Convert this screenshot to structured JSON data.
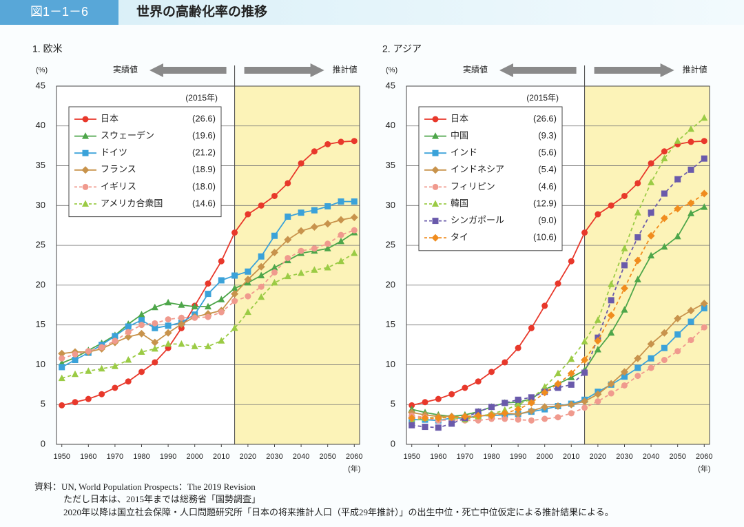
{
  "header": {
    "label": "図1－1－6",
    "title": "世界の高齢化率の推移"
  },
  "notes": [
    "資料：UN, World Population Prospects：The 2019 Revision",
    "ただし日本は、2015年までは総務省「国勢調査」",
    "2020年以降は国立社会保障・人口問題研究所「日本の将来推計人口（平成29年推計）」の出生中位・死亡中位仮定による推計結果による。"
  ],
  "chart_data": [
    {
      "type": "line",
      "title": "1. 欧米",
      "y_label": "(%)",
      "x_label": "(年)",
      "actual_label": "実績値",
      "forecast_label": "推計値",
      "legend_title": "(2015年)",
      "forecast_start": 2015,
      "grid": true,
      "x": [
        1950,
        1955,
        1960,
        1965,
        1970,
        1975,
        1980,
        1985,
        1990,
        1995,
        2000,
        2005,
        2010,
        2015,
        2020,
        2025,
        2030,
        2035,
        2040,
        2045,
        2050,
        2055,
        2060
      ],
      "xlim": [
        1948,
        2062
      ],
      "xticks": [
        1950,
        1960,
        1970,
        1980,
        1990,
        2000,
        2010,
        2020,
        2030,
        2040,
        2050,
        2060
      ],
      "ylim": [
        0,
        45
      ],
      "yticks": [
        0,
        5,
        10,
        15,
        20,
        25,
        30,
        35,
        40,
        45
      ],
      "series": [
        {
          "name": "日本",
          "legend_label": "(26.6)",
          "color": "#e8382b",
          "marker": "circle",
          "dashed": false,
          "values": [
            4.9,
            5.3,
            5.7,
            6.3,
            7.1,
            7.9,
            9.1,
            10.3,
            12.1,
            14.6,
            17.4,
            20.2,
            23.0,
            26.6,
            28.9,
            30.0,
            31.2,
            32.8,
            35.3,
            36.8,
            37.7,
            38.0,
            38.1
          ]
        },
        {
          "name": "スウェーデン",
          "legend_label": "(19.6)",
          "color": "#4ea64a",
          "marker": "triangle",
          "dashed": false,
          "values": [
            10.2,
            10.9,
            11.8,
            12.7,
            13.7,
            15.1,
            16.3,
            17.2,
            17.8,
            17.5,
            17.3,
            17.3,
            18.2,
            19.6,
            20.3,
            21.2,
            22.2,
            23.1,
            24.0,
            24.3,
            24.6,
            25.5,
            26.6
          ]
        },
        {
          "name": "ドイツ",
          "legend_label": "(21.2)",
          "color": "#3ba2d9",
          "marker": "square",
          "dashed": false,
          "values": [
            9.7,
            10.6,
            11.5,
            12.5,
            13.6,
            14.8,
            15.6,
            14.6,
            14.9,
            15.3,
            16.3,
            18.9,
            20.6,
            21.2,
            21.7,
            23.6,
            26.2,
            28.6,
            29.1,
            29.4,
            29.9,
            30.5,
            30.5
          ]
        },
        {
          "name": "フランス",
          "legend_label": "(18.9)",
          "color": "#c8934c",
          "marker": "diamond",
          "dashed": false,
          "values": [
            11.4,
            11.6,
            11.6,
            12.0,
            12.8,
            13.5,
            13.9,
            12.8,
            14.0,
            15.1,
            16.0,
            16.4,
            16.8,
            18.9,
            20.7,
            22.3,
            24.1,
            25.7,
            26.8,
            27.3,
            27.7,
            28.2,
            28.5
          ]
        },
        {
          "name": "イギリス",
          "legend_label": "(18.0)",
          "color": "#f09a8e",
          "marker": "circle",
          "dashed": true,
          "values": [
            10.8,
            11.3,
            11.7,
            12.2,
            13.0,
            14.1,
            15.0,
            15.2,
            15.7,
            15.9,
            15.9,
            16.0,
            16.6,
            18.0,
            18.6,
            19.8,
            21.6,
            23.4,
            24.3,
            24.6,
            25.2,
            26.3,
            26.9
          ]
        },
        {
          "name": "アメリカ合衆国",
          "legend_label": "(14.6)",
          "color": "#9bcb45",
          "marker": "triangle",
          "dashed": true,
          "values": [
            8.3,
            8.8,
            9.2,
            9.5,
            9.8,
            10.6,
            11.6,
            12.0,
            12.6,
            12.6,
            12.3,
            12.3,
            13.0,
            14.6,
            16.6,
            18.5,
            20.3,
            21.1,
            21.5,
            21.9,
            22.2,
            23.0,
            24.0
          ]
        }
      ]
    },
    {
      "type": "line",
      "title": "2. アジア",
      "y_label": "(%)",
      "x_label": "(年)",
      "actual_label": "実績値",
      "forecast_label": "推計値",
      "legend_title": "(2015年)",
      "forecast_start": 2015,
      "grid": true,
      "x": [
        1950,
        1955,
        1960,
        1965,
        1970,
        1975,
        1980,
        1985,
        1990,
        1995,
        2000,
        2005,
        2010,
        2015,
        2020,
        2025,
        2030,
        2035,
        2040,
        2045,
        2050,
        2055,
        2060
      ],
      "xlim": [
        1948,
        2062
      ],
      "xticks": [
        1950,
        1960,
        1970,
        1980,
        1990,
        2000,
        2010,
        2020,
        2030,
        2040,
        2050,
        2060
      ],
      "ylim": [
        0,
        45
      ],
      "yticks": [
        0,
        5,
        10,
        15,
        20,
        25,
        30,
        35,
        40,
        45
      ],
      "series": [
        {
          "name": "日本",
          "legend_label": "(26.6)",
          "color": "#e8382b",
          "marker": "circle",
          "dashed": false,
          "values": [
            4.9,
            5.3,
            5.7,
            6.3,
            7.1,
            7.9,
            9.1,
            10.3,
            12.1,
            14.6,
            17.4,
            20.2,
            23.0,
            26.6,
            28.9,
            30.0,
            31.2,
            32.8,
            35.3,
            36.8,
            37.7,
            38.0,
            38.1
          ]
        },
        {
          "name": "中国",
          "legend_label": "(9.3)",
          "color": "#4ea64a",
          "marker": "triangle",
          "dashed": false,
          "values": [
            4.4,
            4.0,
            3.7,
            3.5,
            3.7,
            4.1,
            4.7,
            5.2,
            5.3,
            5.7,
            6.9,
            7.6,
            8.4,
            9.3,
            11.9,
            14.0,
            16.9,
            20.7,
            23.7,
            24.8,
            26.1,
            29.0,
            29.8
          ]
        },
        {
          "name": "インド",
          "legend_label": "(5.6)",
          "color": "#3ba2d9",
          "marker": "square",
          "dashed": false,
          "values": [
            3.1,
            3.1,
            3.0,
            3.3,
            3.3,
            3.6,
            3.6,
            3.7,
            3.8,
            4.1,
            4.4,
            4.8,
            5.1,
            5.6,
            6.6,
            7.5,
            8.5,
            9.6,
            10.8,
            12.1,
            13.8,
            15.4,
            17.1
          ]
        },
        {
          "name": "インドネシア",
          "legend_label": "(5.4)",
          "color": "#c8934c",
          "marker": "diamond",
          "dashed": false,
          "values": [
            4.0,
            3.7,
            3.5,
            3.5,
            3.3,
            3.5,
            3.8,
            3.9,
            3.8,
            4.2,
            4.7,
            4.8,
            5.0,
            5.4,
            6.3,
            7.6,
            9.1,
            10.8,
            12.6,
            14.0,
            15.8,
            16.8,
            17.7
          ]
        },
        {
          "name": "フィリピン",
          "legend_label": "(4.6)",
          "color": "#f09a8e",
          "marker": "circle",
          "dashed": true,
          "values": [
            3.6,
            3.4,
            3.0,
            3.1,
            3.0,
            3.0,
            3.2,
            3.2,
            3.1,
            3.0,
            3.2,
            3.4,
            3.9,
            4.6,
            5.4,
            6.4,
            7.4,
            8.6,
            9.6,
            10.6,
            11.7,
            13.1,
            14.7
          ]
        },
        {
          "name": "韓国",
          "legend_label": "(12.9)",
          "color": "#9bcb45",
          "marker": "triangle",
          "dashed": true,
          "values": [
            2.9,
            3.3,
            3.4,
            3.4,
            3.1,
            3.5,
            3.8,
            4.3,
            5.0,
            5.7,
            7.2,
            8.9,
            10.7,
            12.9,
            15.6,
            20.1,
            24.6,
            29.1,
            32.9,
            35.9,
            38.1,
            39.6,
            41.0
          ]
        },
        {
          "name": "シンガポール",
          "legend_label": "(9.0)",
          "color": "#6a5aab",
          "marker": "square",
          "dashed": true,
          "values": [
            2.4,
            2.2,
            2.1,
            2.6,
            3.3,
            4.1,
            4.7,
            5.2,
            5.6,
            5.9,
            6.6,
            7.1,
            7.5,
            9.0,
            13.4,
            18.1,
            22.5,
            26.0,
            29.1,
            31.5,
            33.3,
            34.5,
            35.9
          ]
        },
        {
          "name": "タイ",
          "legend_label": "(10.6)",
          "color": "#f08c1e",
          "marker": "diamond",
          "dashed": true,
          "values": [
            3.3,
            3.3,
            3.3,
            3.4,
            3.5,
            3.6,
            3.6,
            3.9,
            4.4,
            5.2,
            6.5,
            7.6,
            8.9,
            10.6,
            13.0,
            16.2,
            19.6,
            23.1,
            26.2,
            28.4,
            29.6,
            30.3,
            31.5
          ]
        }
      ]
    }
  ]
}
